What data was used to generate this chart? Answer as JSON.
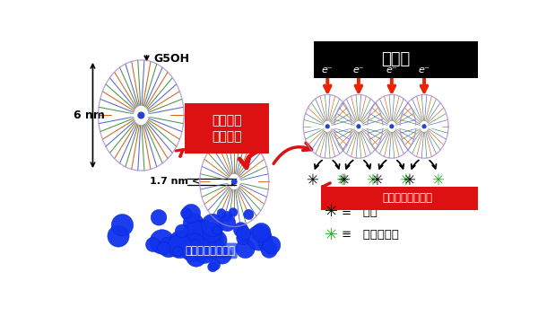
{
  "bg_color": "#ffffff",
  "title_text": "担持体",
  "label_g5oh": "G5OH",
  "label_6nm": "6 nm",
  "label_17nm": "1.7 nm <",
  "label_nano_uptake": "ナノ粒子\n取り込み",
  "label_disperse": "担持体表面に分散",
  "label_aggregated": "凝集したナノ粒子",
  "label_oxygen_sym": "❊",
  "label_oxygen_txt": "≡   酸素",
  "label_product_sym": "❊",
  "label_product_txt": "≡   反応生成物",
  "red_box_color": "#dd1111",
  "black_box_color": "#000000",
  "blue_color": "#1133ee",
  "blue_dark": "#0022bb",
  "tan_color": "#c8a060",
  "line_colors": [
    "#cc4411",
    "#4444bb",
    "#338833",
    "#cc8833"
  ],
  "center_dot_color": "#2244cc",
  "electron_color": "#ee2200",
  "arrow_red": "#dd1111"
}
